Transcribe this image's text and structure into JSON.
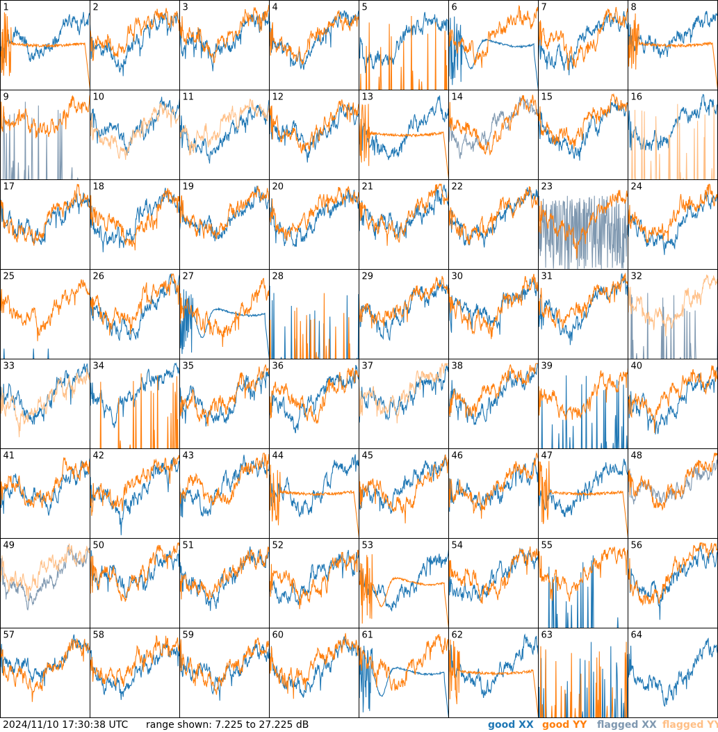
{
  "footer": {
    "timestamp": "2024/11/10 17:30:38 UTC",
    "range_text": "range shown: 7.225 to 27.225 dB"
  },
  "legend": [
    {
      "label": "good XX",
      "color": "#1f77b4"
    },
    {
      "label": "good YY",
      "color": "#ff7f0e"
    },
    {
      "label": "flagged XX",
      "color": "#7f98b0"
    },
    {
      "label": "flagged YY",
      "color": "#ffbf86"
    }
  ],
  "chart_data": {
    "type": "line",
    "grid": {
      "rows": 8,
      "cols": 8
    },
    "y_range_db": [
      7.225,
      27.225
    ],
    "panels": [
      {
        "label": "1",
        "xx": "good",
        "yy": "good",
        "yy_shape": "sag-dropout"
      },
      {
        "label": "2",
        "xx": "good",
        "yy": "good"
      },
      {
        "label": "3",
        "xx": "good",
        "yy": "good"
      },
      {
        "label": "4",
        "xx": "good",
        "yy": "good"
      },
      {
        "label": "5",
        "xx": "good",
        "yy": "good",
        "yy_shape": "spikes"
      },
      {
        "label": "6",
        "xx": "good",
        "yy": "good",
        "xx_shape": "hump"
      },
      {
        "label": "7",
        "xx": "good",
        "yy": "good"
      },
      {
        "label": "8",
        "xx": "good",
        "yy": "good",
        "yy_shape": "sag-dropout"
      },
      {
        "label": "9",
        "xx": "flagged",
        "yy": "good",
        "xx_shape": "spikes"
      },
      {
        "label": "10",
        "xx": "good",
        "yy": "flagged"
      },
      {
        "label": "11",
        "xx": "good",
        "yy": "flagged"
      },
      {
        "label": "12",
        "xx": "good",
        "yy": "good"
      },
      {
        "label": "13",
        "xx": "good",
        "yy": "good",
        "yy_shape": "sag-dropout"
      },
      {
        "label": "14",
        "xx": "flagged",
        "yy": "good"
      },
      {
        "label": "15",
        "xx": "good",
        "yy": "good"
      },
      {
        "label": "16",
        "xx": "good",
        "yy": "flagged",
        "yy_shape": "spikes"
      },
      {
        "label": "17",
        "xx": "good",
        "yy": "good"
      },
      {
        "label": "18",
        "xx": "good",
        "yy": "good"
      },
      {
        "label": "19",
        "xx": "good",
        "yy": "good"
      },
      {
        "label": "20",
        "xx": "good",
        "yy": "good"
      },
      {
        "label": "21",
        "xx": "good",
        "yy": "good"
      },
      {
        "label": "22",
        "xx": "good",
        "yy": "good"
      },
      {
        "label": "23",
        "xx": "flagged",
        "yy": "good",
        "xx_shape": "noisy"
      },
      {
        "label": "24",
        "xx": "good",
        "yy": "good"
      },
      {
        "label": "25",
        "xx": "good",
        "yy": "good",
        "xx_shape": "flat-low"
      },
      {
        "label": "26",
        "xx": "good",
        "yy": "good"
      },
      {
        "label": "27",
        "xx": "good",
        "yy": "good",
        "xx_shape": "hump"
      },
      {
        "label": "28",
        "xx": "good",
        "yy": "good",
        "xx_shape": "spikes",
        "yy_shape": "spikes"
      },
      {
        "label": "29",
        "xx": "good",
        "yy": "good"
      },
      {
        "label": "30",
        "xx": "good",
        "yy": "good"
      },
      {
        "label": "31",
        "xx": "good",
        "yy": "good"
      },
      {
        "label": "32",
        "xx": "flagged",
        "yy": "flagged",
        "xx_shape": "spikes"
      },
      {
        "label": "33",
        "xx": "good",
        "yy": "flagged"
      },
      {
        "label": "34",
        "xx": "good",
        "yy": "good",
        "yy_shape": "spikes"
      },
      {
        "label": "35",
        "xx": "good",
        "yy": "good"
      },
      {
        "label": "36",
        "xx": "good",
        "yy": "good"
      },
      {
        "label": "37",
        "xx": "good",
        "yy": "flagged"
      },
      {
        "label": "38",
        "xx": "good",
        "yy": "good"
      },
      {
        "label": "39",
        "xx": "good",
        "yy": "good",
        "xx_shape": "spikes"
      },
      {
        "label": "40",
        "xx": "good",
        "yy": "good"
      },
      {
        "label": "41",
        "xx": "good",
        "yy": "good"
      },
      {
        "label": "42",
        "xx": "good",
        "yy": "good"
      },
      {
        "label": "43",
        "xx": "good",
        "yy": "good"
      },
      {
        "label": "44",
        "xx": "good",
        "yy": "good",
        "yy_shape": "sag-dropout"
      },
      {
        "label": "45",
        "xx": "good",
        "yy": "good"
      },
      {
        "label": "46",
        "xx": "good",
        "yy": "good"
      },
      {
        "label": "47",
        "xx": "good",
        "yy": "good",
        "yy_shape": "sag-dropout"
      },
      {
        "label": "48",
        "xx": "flagged",
        "yy": "good"
      },
      {
        "label": "49",
        "xx": "flagged",
        "yy": "flagged"
      },
      {
        "label": "50",
        "xx": "good",
        "yy": "good"
      },
      {
        "label": "51",
        "xx": "good",
        "yy": "good"
      },
      {
        "label": "52",
        "xx": "good",
        "yy": "good"
      },
      {
        "label": "53",
        "xx": "good",
        "yy": "good",
        "yy_shape": "hump"
      },
      {
        "label": "54",
        "xx": "good",
        "yy": "good"
      },
      {
        "label": "55",
        "xx": "good",
        "yy": "good",
        "xx_shape": "spikes"
      },
      {
        "label": "56",
        "xx": "good",
        "yy": "good"
      },
      {
        "label": "57",
        "xx": "good",
        "yy": "good"
      },
      {
        "label": "58",
        "xx": "good",
        "yy": "good"
      },
      {
        "label": "59",
        "xx": "good",
        "yy": "good"
      },
      {
        "label": "60",
        "xx": "good",
        "yy": "good"
      },
      {
        "label": "61",
        "xx": "good",
        "yy": "good",
        "xx_shape": "hump"
      },
      {
        "label": "62",
        "xx": "good",
        "yy": "good",
        "yy_shape": "sag-dropout"
      },
      {
        "label": "63",
        "xx": "good",
        "yy": "good",
        "xx_shape": "spikes",
        "yy_shape": "spikes"
      },
      {
        "label": "64",
        "xx": "good",
        "yy": "good",
        "yy_shape": "none"
      }
    ]
  }
}
